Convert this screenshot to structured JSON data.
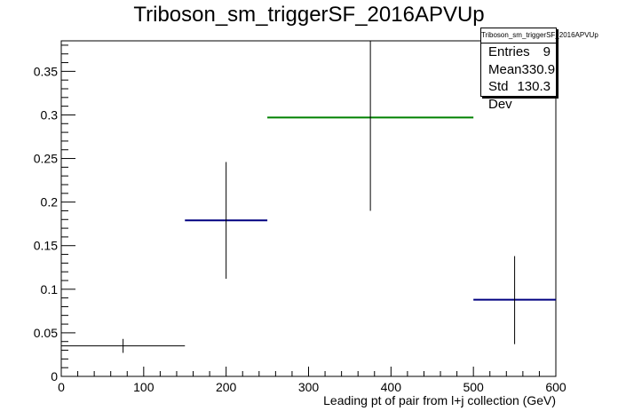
{
  "title": "Triboson_sm_triggerSF_2016APVUp",
  "stats": {
    "name": "Triboson_sm_triggerSF_2016APVUp",
    "entries_label": "Entries",
    "entries": "9",
    "mean_label": "Mean",
    "mean": "330.9",
    "stddev_label": "Std Dev",
    "stddev": "130.3"
  },
  "chart_data": {
    "type": "histogram",
    "title": "Triboson_sm_triggerSF_2016APVUp",
    "xlabel": "Leading pt of pair from l+j collection (GeV)",
    "ylabel": "",
    "xlim": [
      0,
      600
    ],
    "ylim": [
      0,
      0.385
    ],
    "xticks": [
      0,
      100,
      200,
      300,
      400,
      500,
      600
    ],
    "xtick_labels": [
      "0",
      "100",
      "200",
      "300",
      "400",
      "500",
      "600"
    ],
    "yticks": [
      0,
      0.05,
      0.1,
      0.15,
      0.2,
      0.25,
      0.3,
      0.35
    ],
    "ytick_labels": [
      "0",
      "0.05",
      "0.1",
      "0.15",
      "0.2",
      "0.25",
      "0.3",
      "0.35"
    ],
    "bins": [
      {
        "xlow": 0,
        "xhigh": 150,
        "x": 75,
        "y": 0.035,
        "ylow": 0.027,
        "yhigh": 0.043,
        "color": "#000000"
      },
      {
        "xlow": 150,
        "xhigh": 250,
        "x": 200,
        "y": 0.179,
        "ylow": 0.112,
        "yhigh": 0.246,
        "color": "#000080"
      },
      {
        "xlow": 250,
        "xhigh": 500,
        "x": 375,
        "y": 0.297,
        "ylow": 0.19,
        "yhigh": 0.385,
        "color": "#008000"
      },
      {
        "xlow": 500,
        "xhigh": 600,
        "x": 550,
        "y": 0.088,
        "ylow": 0.037,
        "yhigh": 0.138,
        "color": "#000080"
      }
    ]
  }
}
